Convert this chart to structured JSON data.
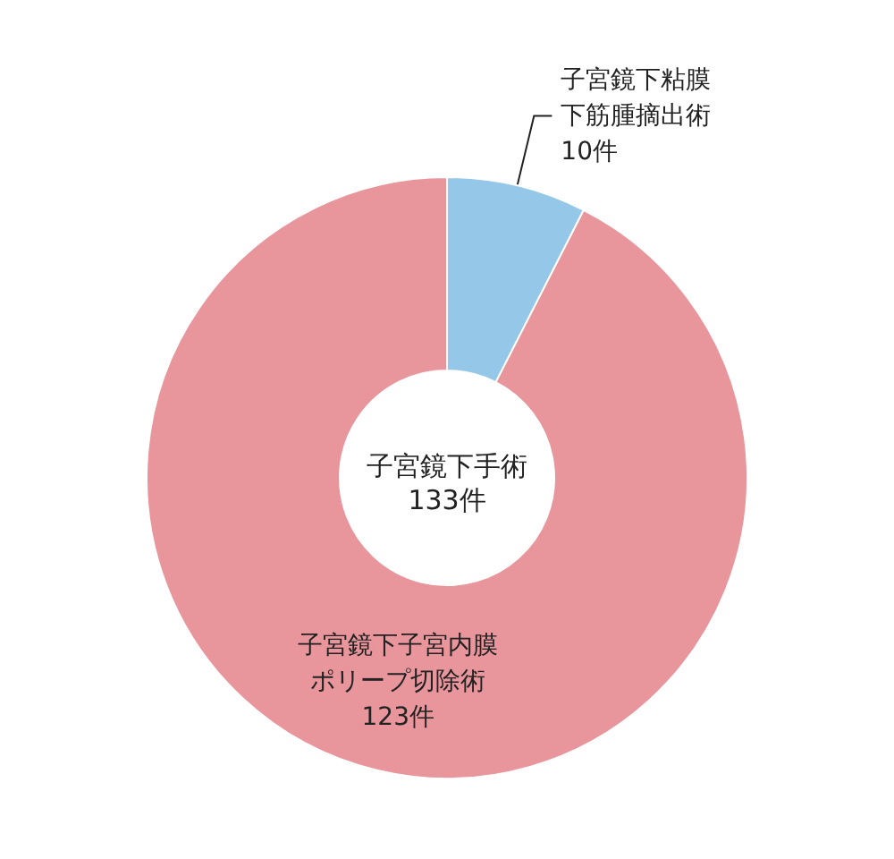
{
  "chart_data": {
    "type": "donut",
    "title": "子宮鏡下手術",
    "subtitle": "133件",
    "categories": [
      "子宮鏡下粘膜下筋腫摘出術",
      "子宮鏡下子宮内膜ポリープ切除術"
    ],
    "values": [
      10,
      123
    ],
    "value_labels": [
      "10件",
      "123件"
    ],
    "colors": [
      "#95c8e8",
      "#e8959c"
    ],
    "legend": false
  }
}
